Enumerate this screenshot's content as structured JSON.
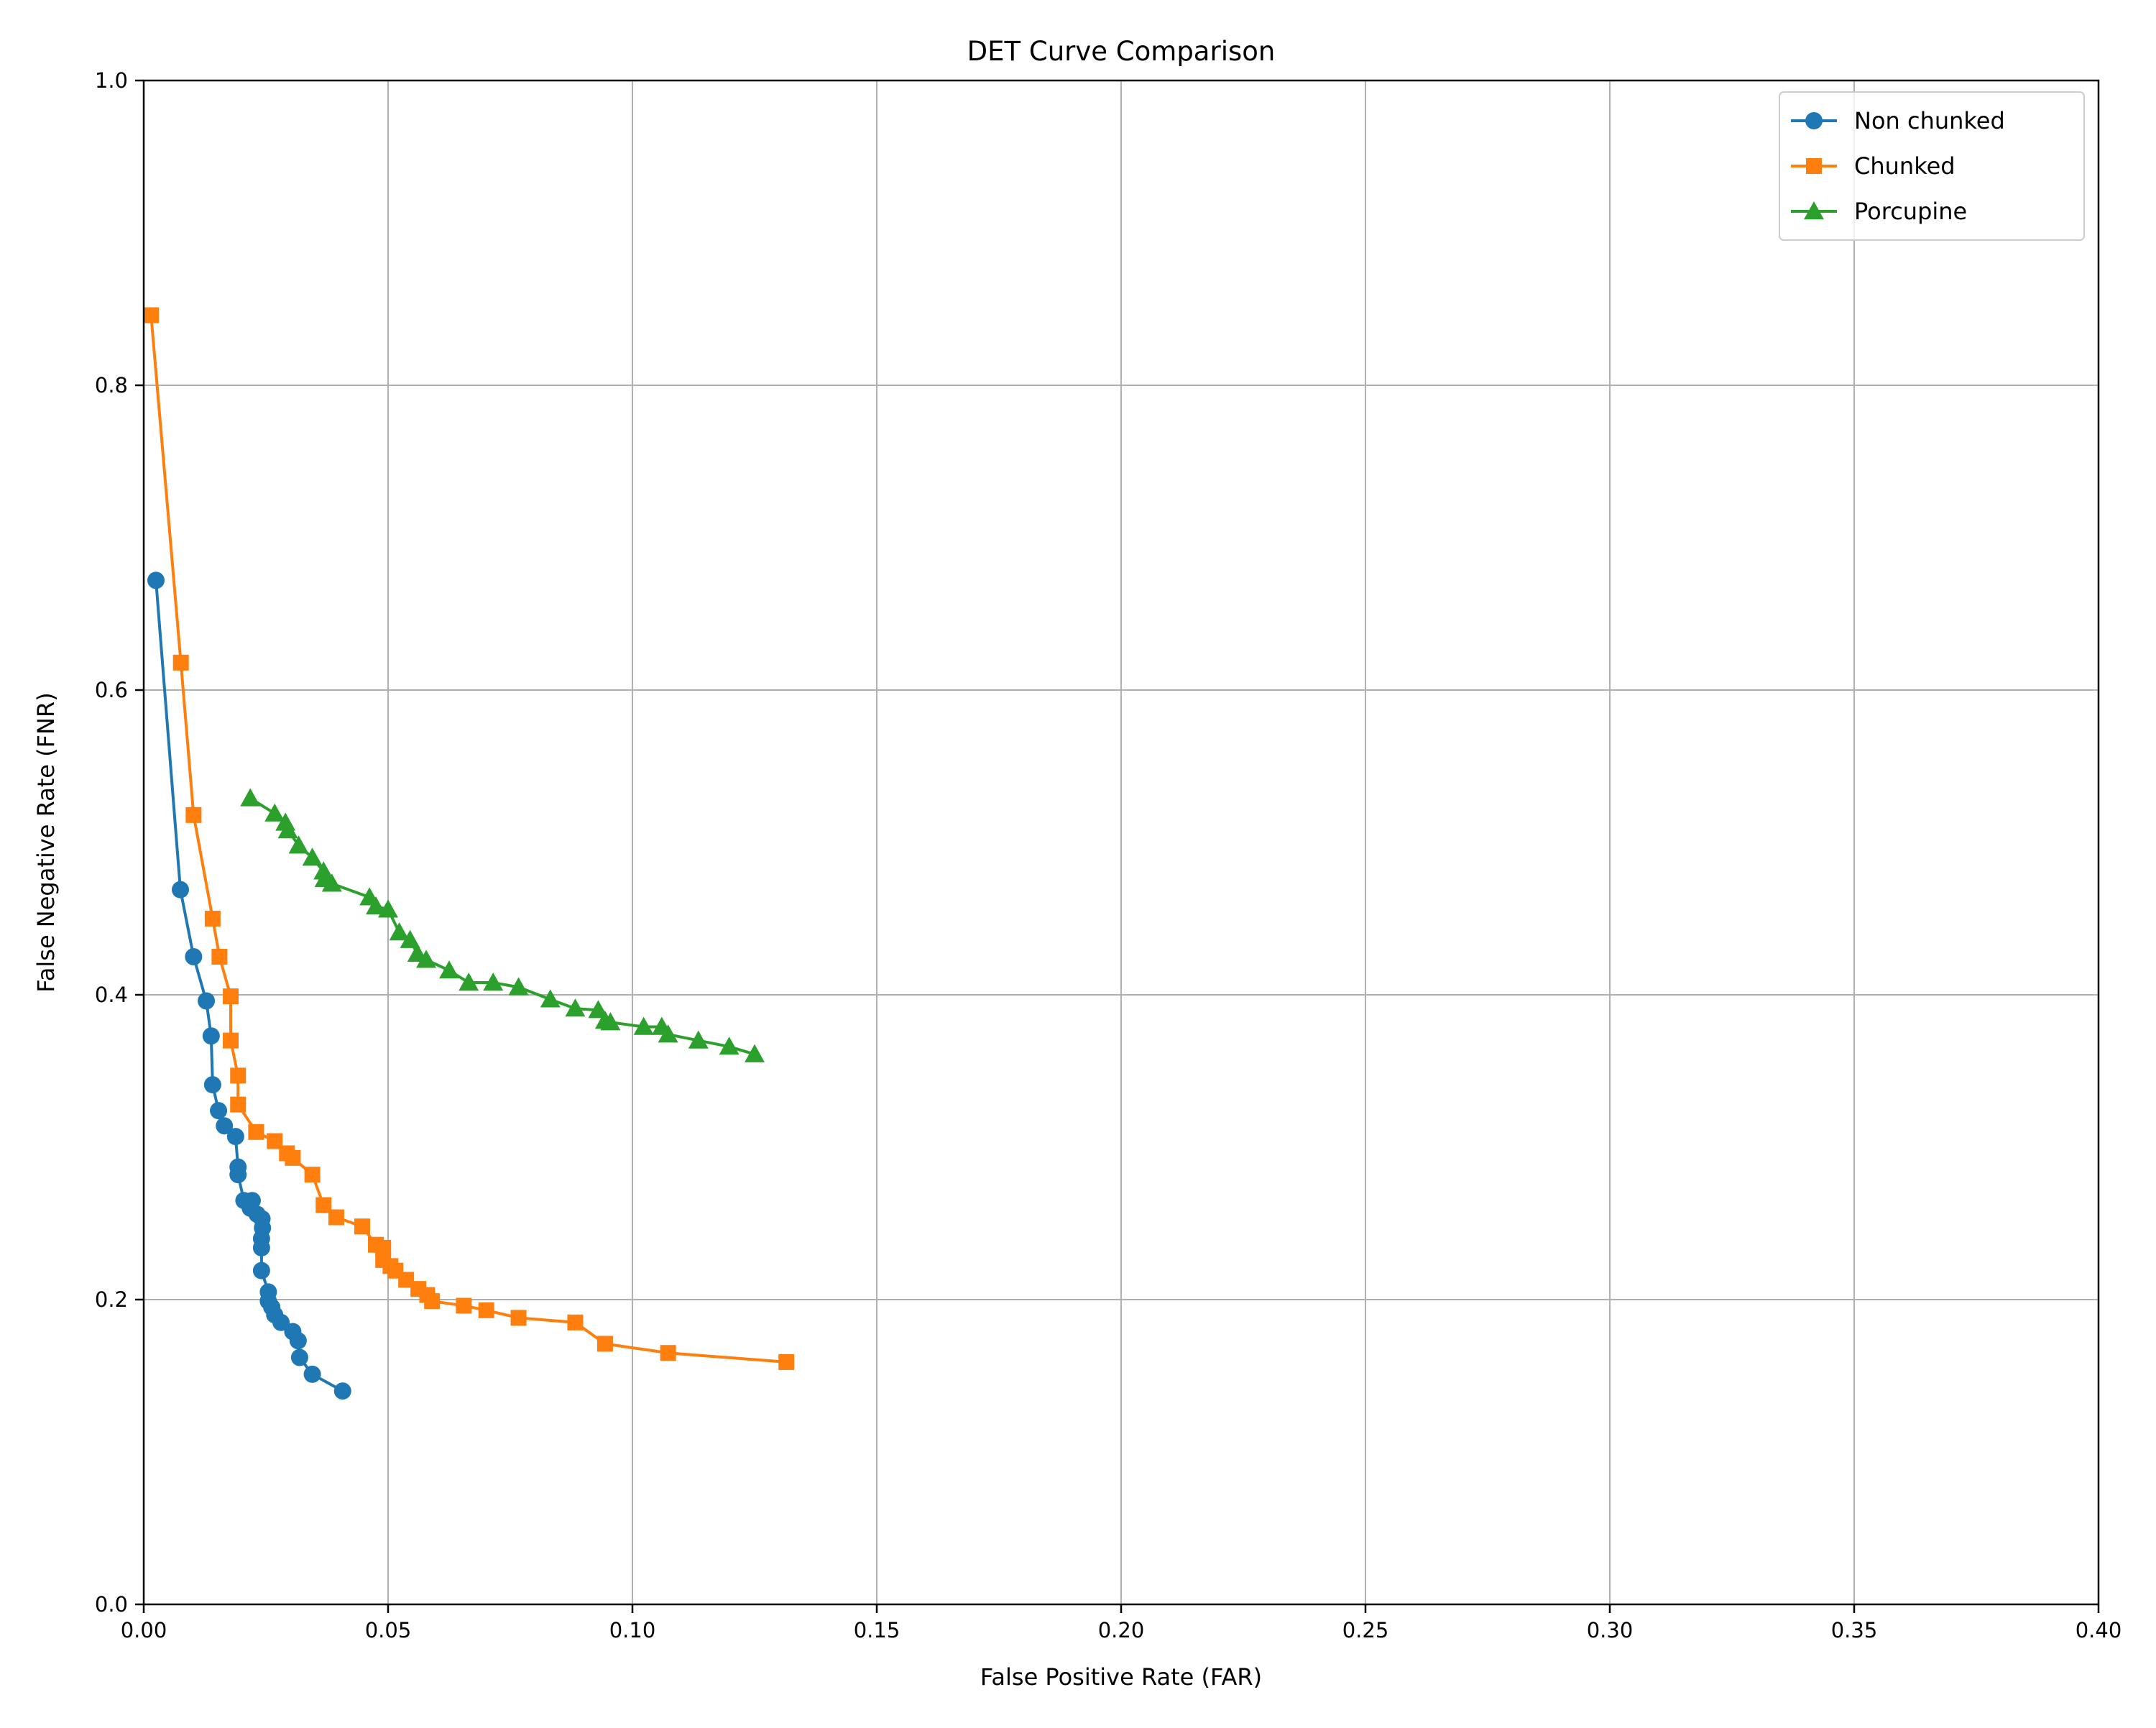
{
  "chart_data": {
    "type": "line",
    "title": "DET Curve Comparison",
    "xlabel": "False Positive Rate (FAR)",
    "ylabel": "False Negative Rate (FNR)",
    "xlim": [
      0,
      0.4
    ],
    "ylim": [
      0,
      1.0
    ],
    "xticks": [
      "0.00",
      "0.05",
      "0.10",
      "0.15",
      "0.20",
      "0.25",
      "0.30",
      "0.35",
      "0.40"
    ],
    "yticks": [
      "0.0",
      "0.2",
      "0.4",
      "0.6",
      "0.8",
      "1.0"
    ],
    "grid": true,
    "legend_position": "top-right",
    "series": [
      {
        "name": "Non chunked",
        "color": "#1f77b4",
        "marker": "circle",
        "points": [
          [
            0.0025,
            0.672
          ],
          [
            0.0075,
            0.469
          ],
          [
            0.0102,
            0.425
          ],
          [
            0.0128,
            0.396
          ],
          [
            0.0138,
            0.373
          ],
          [
            0.0141,
            0.341
          ],
          [
            0.0153,
            0.324
          ],
          [
            0.0165,
            0.314
          ],
          [
            0.0188,
            0.307
          ],
          [
            0.0193,
            0.287
          ],
          [
            0.0193,
            0.282
          ],
          [
            0.0205,
            0.265
          ],
          [
            0.0218,
            0.26
          ],
          [
            0.0222,
            0.265
          ],
          [
            0.0232,
            0.256
          ],
          [
            0.0242,
            0.253
          ],
          [
            0.0243,
            0.247
          ],
          [
            0.0241,
            0.24
          ],
          [
            0.0241,
            0.234
          ],
          [
            0.0241,
            0.219
          ],
          [
            0.0255,
            0.205
          ],
          [
            0.0255,
            0.199
          ],
          [
            0.0262,
            0.195
          ],
          [
            0.0268,
            0.19
          ],
          [
            0.0281,
            0.185
          ],
          [
            0.0305,
            0.179
          ],
          [
            0.0316,
            0.173
          ],
          [
            0.0319,
            0.162
          ],
          [
            0.0345,
            0.151
          ],
          [
            0.0407,
            0.14
          ]
        ]
      },
      {
        "name": "Chunked",
        "color": "#ff7f0e",
        "marker": "square",
        "points": [
          [
            0.0015,
            0.846
          ],
          [
            0.0076,
            0.618
          ],
          [
            0.0102,
            0.518
          ],
          [
            0.0141,
            0.45
          ],
          [
            0.0155,
            0.425
          ],
          [
            0.0178,
            0.399
          ],
          [
            0.0178,
            0.37
          ],
          [
            0.0193,
            0.347
          ],
          [
            0.0193,
            0.328
          ],
          [
            0.023,
            0.31
          ],
          [
            0.0268,
            0.304
          ],
          [
            0.0293,
            0.296
          ],
          [
            0.0305,
            0.293
          ],
          [
            0.0345,
            0.282
          ],
          [
            0.0368,
            0.262
          ],
          [
            0.0394,
            0.254
          ],
          [
            0.0447,
            0.248
          ],
          [
            0.0475,
            0.236
          ],
          [
            0.049,
            0.234
          ],
          [
            0.049,
            0.226
          ],
          [
            0.0505,
            0.222
          ],
          [
            0.0515,
            0.219
          ],
          [
            0.0537,
            0.213
          ],
          [
            0.0562,
            0.207
          ],
          [
            0.058,
            0.203
          ],
          [
            0.059,
            0.199
          ],
          [
            0.0655,
            0.196
          ],
          [
            0.0701,
            0.193
          ],
          [
            0.0767,
            0.188
          ],
          [
            0.0883,
            0.185
          ],
          [
            0.0944,
            0.171
          ],
          [
            0.1073,
            0.165
          ],
          [
            0.1315,
            0.159
          ]
        ]
      },
      {
        "name": "Porcupine",
        "color": "#2ca02c",
        "marker": "triangle",
        "points": [
          [
            0.0218,
            0.529
          ],
          [
            0.0268,
            0.519
          ],
          [
            0.029,
            0.513
          ],
          [
            0.0295,
            0.508
          ],
          [
            0.0317,
            0.498
          ],
          [
            0.0345,
            0.49
          ],
          [
            0.0368,
            0.481
          ],
          [
            0.037,
            0.476
          ],
          [
            0.0385,
            0.473
          ],
          [
            0.0462,
            0.464
          ],
          [
            0.0475,
            0.458
          ],
          [
            0.05,
            0.456
          ],
          [
            0.0523,
            0.441
          ],
          [
            0.0545,
            0.436
          ],
          [
            0.056,
            0.427
          ],
          [
            0.0578,
            0.423
          ],
          [
            0.0625,
            0.416
          ],
          [
            0.0665,
            0.408
          ],
          [
            0.0715,
            0.408
          ],
          [
            0.0767,
            0.405
          ],
          [
            0.0832,
            0.397
          ],
          [
            0.0883,
            0.391
          ],
          [
            0.093,
            0.39
          ],
          [
            0.0944,
            0.383
          ],
          [
            0.0955,
            0.382
          ],
          [
            0.1023,
            0.379
          ],
          [
            0.106,
            0.379
          ],
          [
            0.1073,
            0.374
          ],
          [
            0.1135,
            0.37
          ],
          [
            0.1198,
            0.366
          ],
          [
            0.125,
            0.361
          ]
        ]
      }
    ]
  }
}
